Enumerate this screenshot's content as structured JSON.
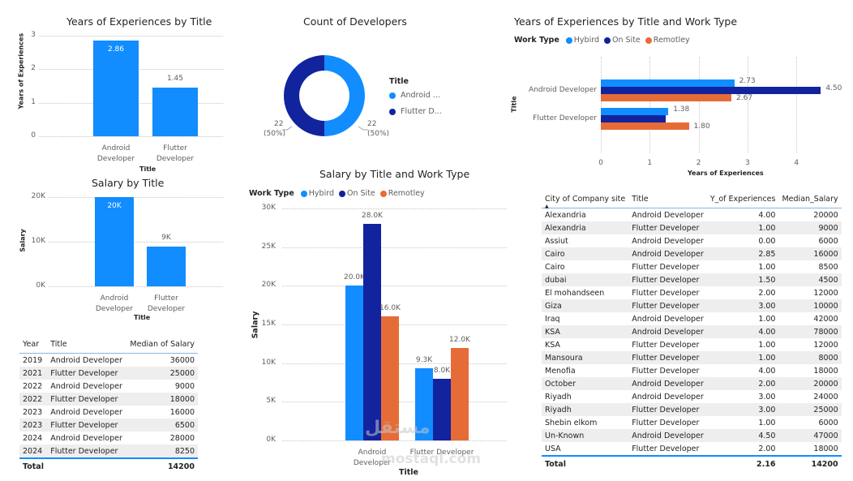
{
  "colors": {
    "hybird": "#118dff",
    "on_site": "#12239e",
    "remotley": "#e66c37",
    "single_series": "#118dff"
  },
  "chart_data": [
    {
      "id": "years_by_title",
      "type": "bar",
      "title": "Years of Experiences by Title",
      "xlabel": "Title",
      "ylabel": "Years of Experiences",
      "categories": [
        "Android Developer",
        "Flutter Developer"
      ],
      "category_lines": [
        [
          "Android",
          "Developer"
        ],
        [
          "Flutter",
          "Developer"
        ]
      ],
      "values": [
        2.86,
        1.45
      ],
      "data_labels": [
        "2.86",
        "1.45"
      ],
      "ylim": [
        0,
        3
      ],
      "yticks": [
        "0",
        "1",
        "2",
        "3"
      ],
      "grid": true
    },
    {
      "id": "count_of_developers",
      "type": "pie",
      "variant": "donut",
      "title": "Count of Developers",
      "legend_title": "Title",
      "legend_position": "right",
      "slices": [
        {
          "label": "Android Developer",
          "legend_text": "Android ...",
          "value": 22,
          "percent": "50%",
          "data_label": "22",
          "data_label_pct": "(50%)"
        },
        {
          "label": "Flutter Developer",
          "legend_text": "Flutter D...",
          "value": 22,
          "percent": "50%",
          "data_label": "22",
          "data_label_pct": "(50%)"
        }
      ]
    },
    {
      "id": "years_by_title_worktype",
      "type": "bar",
      "orientation": "horizontal",
      "title": "Years of Experiences by Title and Work Type",
      "legend_title": "Work Type",
      "legend_position": "top-left",
      "xlabel": "Years of Experiences",
      "ylabel": "Title",
      "categories": [
        "Android Developer",
        "Flutter Developer"
      ],
      "series": [
        {
          "name": "Hybird",
          "values": [
            2.73,
            1.38
          ],
          "data_labels": [
            "2.73",
            "1.38"
          ]
        },
        {
          "name": "On Site",
          "values": [
            4.5,
            1.33
          ],
          "data_labels": [
            "4.50",
            ""
          ]
        },
        {
          "name": "Remotley",
          "values": [
            2.67,
            1.8
          ],
          "data_labels": [
            "2.67",
            "1.80"
          ]
        }
      ],
      "xlim": [
        0,
        4.6
      ],
      "xticks": [
        "0",
        "1",
        "2",
        "3",
        "4"
      ],
      "grid": true
    },
    {
      "id": "salary_by_title",
      "type": "bar",
      "title": "Salary by Title",
      "xlabel": "Title",
      "ylabel": "Salary",
      "categories": [
        "Android Developer",
        "Flutter Developer"
      ],
      "category_lines": [
        [
          "Android",
          "Developer"
        ],
        [
          "Flutter",
          "Developer"
        ]
      ],
      "values": [
        20000,
        9000
      ],
      "data_labels": [
        "20K",
        "9K"
      ],
      "ylim": [
        0,
        20000
      ],
      "yticks": [
        "0K",
        "10K",
        "20K"
      ],
      "grid": true
    },
    {
      "id": "salary_by_title_worktype",
      "type": "bar",
      "title": "Salary by Title and Work Type",
      "legend_title": "Work Type",
      "legend_position": "top-left",
      "xlabel": "Title",
      "ylabel": "Salary",
      "categories": [
        "Android Developer",
        "Flutter Developer"
      ],
      "category_lines": [
        [
          "Android",
          "Developer"
        ],
        [
          "Flutter Developer"
        ]
      ],
      "series": [
        {
          "name": "Hybird",
          "values": [
            20000,
            9300
          ],
          "data_labels": [
            "20.0K",
            "9.3K"
          ]
        },
        {
          "name": "On Site",
          "values": [
            28000,
            8000
          ],
          "data_labels": [
            "28.0K",
            "8.0K"
          ]
        },
        {
          "name": "Remotley",
          "values": [
            16000,
            12000
          ],
          "data_labels": [
            "16.0K",
            "12.0K"
          ]
        }
      ],
      "ylim": [
        0,
        30000
      ],
      "yticks": [
        "0K",
        "5K",
        "10K",
        "15K",
        "20K",
        "25K",
        "30K"
      ],
      "grid": true
    },
    {
      "id": "median_salary_by_year",
      "type": "table",
      "columns": [
        "Year",
        "Title",
        "Median of Salary"
      ],
      "rows": [
        [
          "2019",
          "Android Developer",
          "36000"
        ],
        [
          "2021",
          "Flutter Developer",
          "25000"
        ],
        [
          "2022",
          "Android Developer",
          "9000"
        ],
        [
          "2022",
          "Flutter Developer",
          "18000"
        ],
        [
          "2023",
          "Android Developer",
          "16000"
        ],
        [
          "2023",
          "Flutter Developer",
          "6500"
        ],
        [
          "2024",
          "Android Developer",
          "28000"
        ],
        [
          "2024",
          "Flutter Developer",
          "8250"
        ]
      ],
      "total": [
        "Total",
        "",
        "14200"
      ]
    },
    {
      "id": "city_table",
      "type": "table",
      "columns": [
        "City of Company site",
        "Title",
        "Y_of Experiences",
        "Median_Salary"
      ],
      "sort_column": "City of Company site",
      "sort_direction": "ascending",
      "rows": [
        [
          "Alexandria",
          "Android Developer",
          "4.00",
          "20000"
        ],
        [
          "Alexandria",
          "Flutter Developer",
          "1.00",
          "9000"
        ],
        [
          "Assiut",
          "Android Developer",
          "0.00",
          "6000"
        ],
        [
          "Cairo",
          "Android Developer",
          "2.85",
          "16000"
        ],
        [
          "Cairo",
          "Flutter Developer",
          "1.00",
          "8500"
        ],
        [
          "dubai",
          "Flutter Developer",
          "1.50",
          "4500"
        ],
        [
          "El mohandseen",
          "Flutter Developer",
          "2.00",
          "12000"
        ],
        [
          "Giza",
          "Flutter Developer",
          "3.00",
          "10000"
        ],
        [
          "Iraq",
          "Android Developer",
          "1.00",
          "42000"
        ],
        [
          "KSA",
          "Android Developer",
          "4.00",
          "78000"
        ],
        [
          "KSA",
          "Flutter Developer",
          "1.00",
          "12000"
        ],
        [
          "Mansoura",
          "Flutter Developer",
          "1.00",
          "8000"
        ],
        [
          "Menofia",
          "Flutter Developer",
          "4.00",
          "18000"
        ],
        [
          "October",
          "Android Developer",
          "2.00",
          "20000"
        ],
        [
          "Riyadh",
          "Android Developer",
          "3.00",
          "24000"
        ],
        [
          "Riyadh",
          "Flutter Developer",
          "3.00",
          "25000"
        ],
        [
          "Shebin elkom",
          "Flutter Developer",
          "1.00",
          "6000"
        ],
        [
          "Un-Known",
          "Android Developer",
          "4.50",
          "47000"
        ],
        [
          "USA",
          "Flutter Developer",
          "2.00",
          "18000"
        ]
      ],
      "total": [
        "Total",
        "",
        "2.16",
        "14200"
      ]
    }
  ],
  "watermark": {
    "line1": "مستقل",
    "line2": "mostaql.com"
  }
}
